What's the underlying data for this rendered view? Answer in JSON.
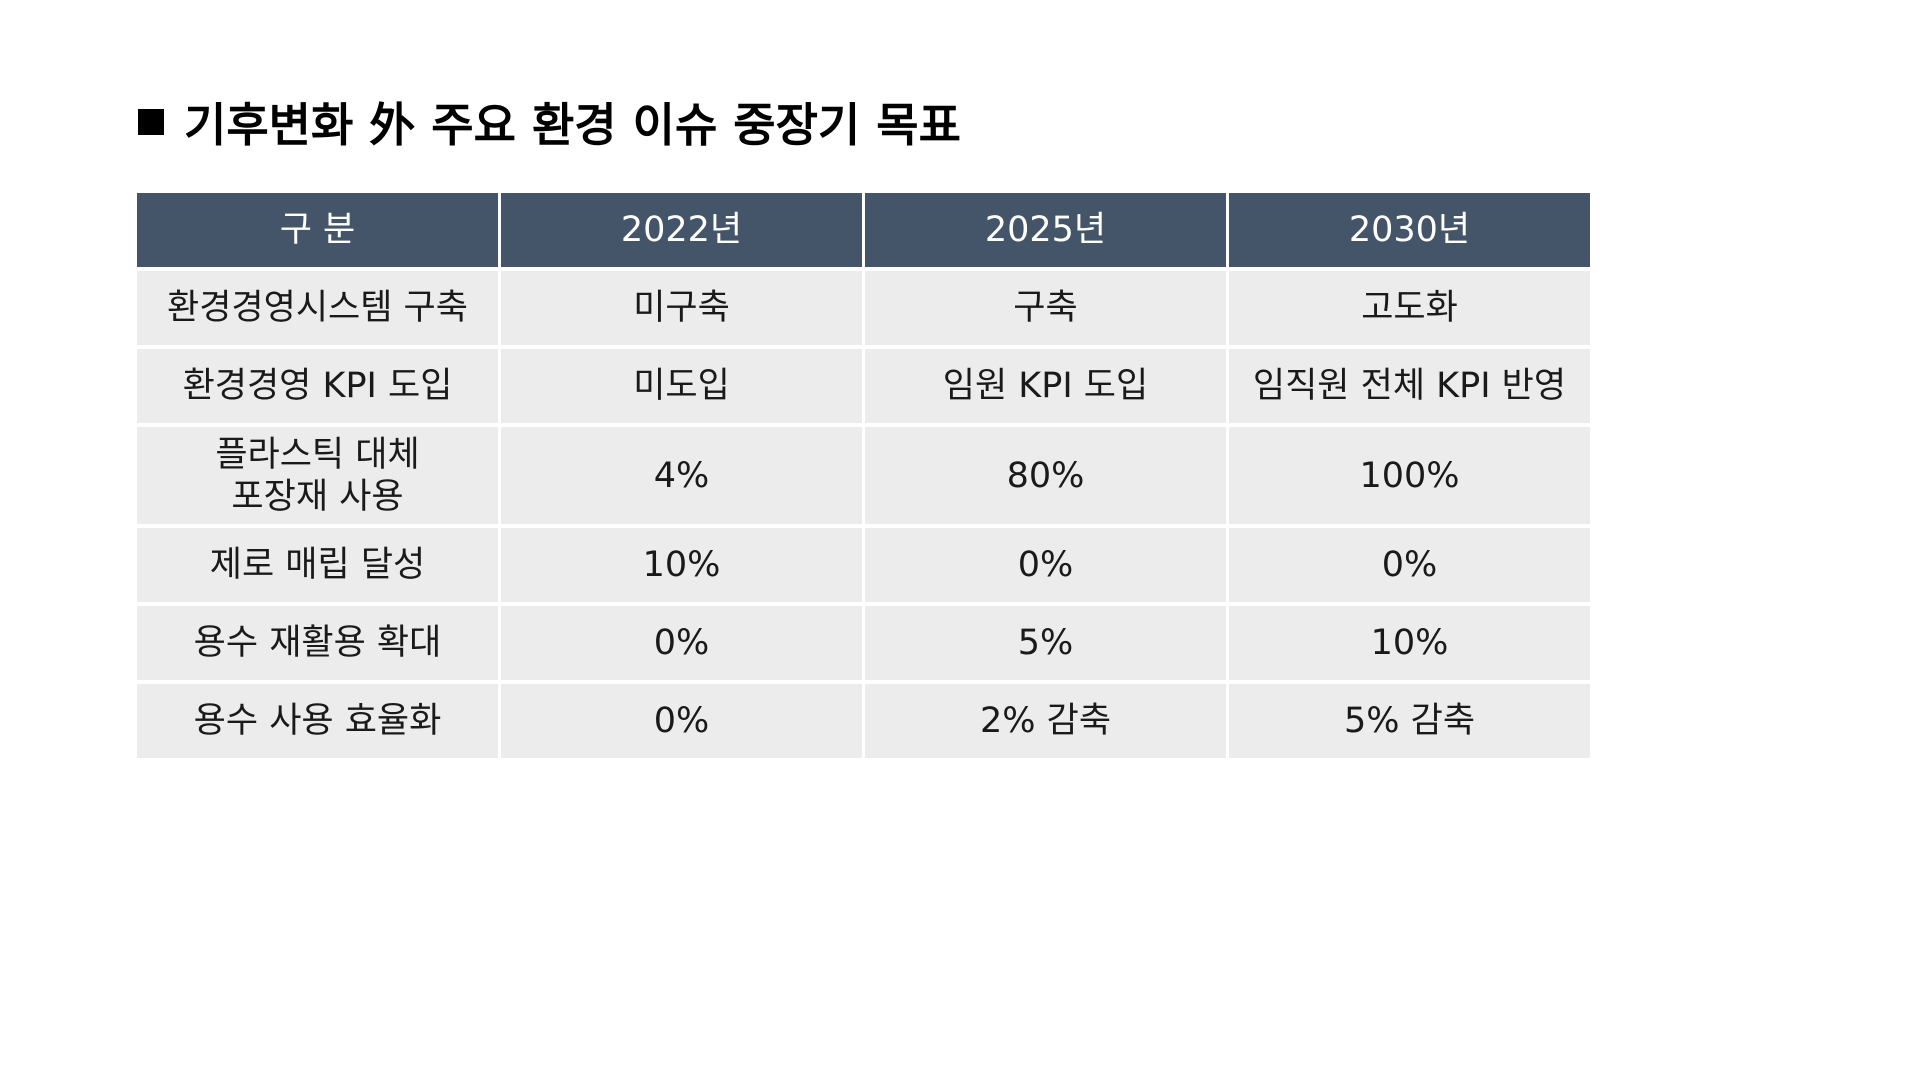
{
  "title": "기후변화 外 주요 환경 이슈 중장기 목표",
  "table": {
    "headers": [
      "구  분",
      "2022년",
      "2025년",
      "2030년"
    ],
    "rows": [
      [
        "환경경영시스템 구축",
        "미구축",
        "구축",
        "고도화"
      ],
      [
        "환경경영 KPI 도입",
        "미도입",
        "임원 KPI 도입",
        "임직원 전체 KPI 반영"
      ],
      [
        "플라스틱 대체\n포장재 사용",
        "4%",
        "80%",
        "100%"
      ],
      [
        "제로 매립 달성",
        "10%",
        "0%",
        "0%"
      ],
      [
        "용수 재활용 확대",
        "0%",
        "5%",
        "10%"
      ],
      [
        "용수 사용 효율화",
        "0%",
        "2% 감축",
        "5% 감축"
      ]
    ]
  },
  "colors": {
    "header_bg": "#445469",
    "cell_bg": "#ececec"
  }
}
